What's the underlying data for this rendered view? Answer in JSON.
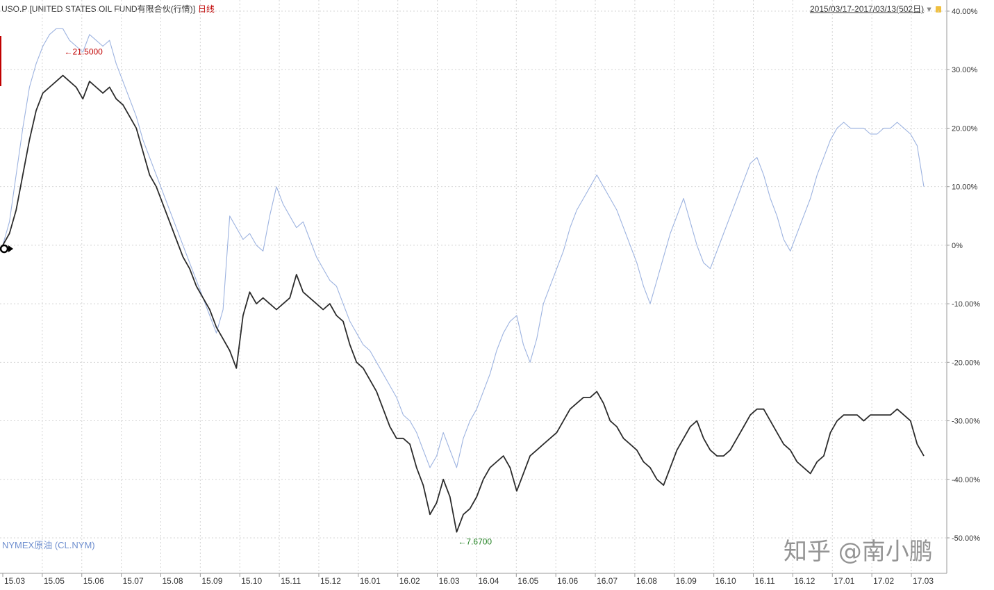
{
  "header": {
    "title": "USO.P [UNITED STATES OIL FUND有限合伙(行情)]",
    "period": "日线",
    "date_range": "2015/03/17-2017/03/13(502日)",
    "dropdown_icon": "triangle-down-icon",
    "lock_icon": "lock-icon"
  },
  "compare_label": "NYMEX原油 (CL.NYM)",
  "watermark": "知乎 @南小鹏",
  "colors": {
    "main_series": "#2b2b2b",
    "compare_series": "#9db3e0",
    "max_annotation": "#c00000",
    "min_annotation": "#208020",
    "grid": "#d0d0d0"
  },
  "chart_data": {
    "type": "line",
    "title": "USO.P [UNITED STATES OIL FUND有限合伙(行情)]",
    "xlabel": "",
    "ylabel": "",
    "ylim": [
      -50,
      40
    ],
    "y_ticks": [
      "40.00%",
      "30.00%",
      "20.00%",
      "10.00%",
      "0%",
      "-10.00%",
      "-20.00%",
      "-30.00%",
      "-40.00%",
      "-50.00%"
    ],
    "x_ticks": [
      "15.03",
      "15.05",
      "15.06",
      "15.07",
      "15.08",
      "15.09",
      "15.10",
      "15.11",
      "15.12",
      "16.01",
      "16.02",
      "16.03",
      "16.04",
      "16.05",
      "16.06",
      "16.07",
      "16.08",
      "16.09",
      "16.10",
      "16.11",
      "16.12",
      "17.01",
      "17.02",
      "17.03"
    ],
    "grid": true,
    "annotations": [
      {
        "text": "←21.5000",
        "kind": "max"
      },
      {
        "text": "←7.6700",
        "kind": "min"
      }
    ],
    "series": [
      {
        "key": "uso",
        "values": [
          0,
          2,
          6,
          12,
          18,
          23,
          26,
          27,
          28,
          29,
          28,
          27,
          25,
          28,
          27,
          26,
          27,
          25,
          24,
          22,
          20,
          16,
          12,
          10,
          7,
          4,
          1,
          -2,
          -4,
          -7,
          -9,
          -11,
          -14,
          -16,
          -18,
          -21,
          -12,
          -8,
          -10,
          -9,
          -10,
          -11,
          -10,
          -9,
          -5,
          -8,
          -9,
          -10,
          -11,
          -10,
          -12,
          -13,
          -17,
          -20,
          -21,
          -23,
          -25,
          -28,
          -31,
          -33,
          -33,
          -34,
          -38,
          -41,
          -46,
          -44,
          -40,
          -43,
          -49,
          -46,
          -45,
          -43,
          -40,
          -38,
          -37,
          -36,
          -38,
          -42,
          -39,
          -36,
          -35,
          -34,
          -33,
          -32,
          -30,
          -28,
          -27,
          -26,
          -26,
          -25,
          -27,
          -30,
          -31,
          -33,
          -34,
          -35,
          -37,
          -38,
          -40,
          -41,
          -38,
          -35,
          -33,
          -31,
          -30,
          -33,
          -35,
          -36,
          -36,
          -35,
          -33,
          -31,
          -29,
          -28,
          -28,
          -30,
          -32,
          -34,
          -35,
          -37,
          -38,
          -39,
          -37,
          -36,
          -32,
          -30,
          -29,
          -29,
          -29,
          -30,
          -29,
          -29,
          -29,
          -29,
          -28,
          -29,
          -30,
          -34,
          -36
        ],
        "end_value": -36
      },
      {
        "key": "cl",
        "values": [
          0,
          4,
          12,
          20,
          27,
          31,
          34,
          36,
          37,
          37,
          35,
          34,
          33,
          36,
          35,
          34,
          35,
          31,
          28,
          25,
          22,
          18,
          15,
          12,
          9,
          6,
          3,
          0,
          -3,
          -6,
          -9,
          -12,
          -15,
          -11,
          5,
          3,
          1,
          2,
          0,
          -1,
          5,
          10,
          7,
          5,
          3,
          4,
          1,
          -2,
          -4,
          -6,
          -7,
          -10,
          -13,
          -15,
          -17,
          -18,
          -20,
          -22,
          -24,
          -26,
          -29,
          -30,
          -32,
          -35,
          -38,
          -36,
          -32,
          -35,
          -38,
          -33,
          -30,
          -28,
          -25,
          -22,
          -18,
          -15,
          -13,
          -12,
          -17,
          -20,
          -16,
          -10,
          -7,
          -4,
          -1,
          3,
          6,
          8,
          10,
          12,
          10,
          8,
          6,
          3,
          0,
          -3,
          -7,
          -10,
          -6,
          -2,
          2,
          5,
          8,
          4,
          0,
          -3,
          -4,
          -1,
          2,
          5,
          8,
          11,
          14,
          15,
          12,
          8,
          5,
          1,
          -1,
          2,
          5,
          8,
          12,
          15,
          18,
          20,
          21,
          20,
          20,
          20,
          19,
          19,
          20,
          20,
          21,
          20,
          19,
          17,
          10
        ],
        "end_value": 10
      }
    ]
  }
}
